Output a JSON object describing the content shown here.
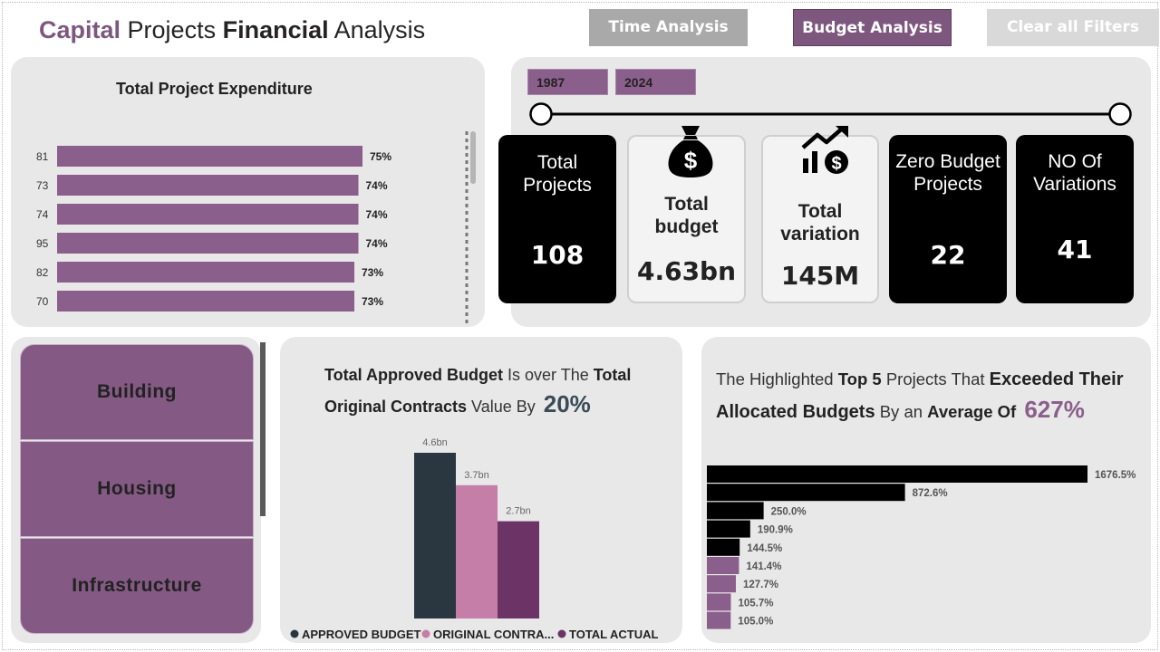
{
  "header": {
    "title_part1": "Capital",
    "title_part2": " Projects ",
    "title_part3": "Financial",
    "title_part4": " Analysis"
  },
  "nav": {
    "time_analysis": "Time Analysis",
    "budget_analysis": "Budget Analysis",
    "clear_filters": "Clear all Filters"
  },
  "colors": {
    "accent": "#7e577f",
    "dark_bar": "#2a3740",
    "pink_bar": "#c47ea7",
    "purple_bar": "#6c3466"
  },
  "expenditure": {
    "title": "Total Project Expenditure",
    "rows": [
      {
        "label": "81",
        "pct": 75,
        "value_label": "75%"
      },
      {
        "label": "73",
        "pct": 74,
        "value_label": "74%"
      },
      {
        "label": "74",
        "pct": 74,
        "value_label": "74%"
      },
      {
        "label": "95",
        "pct": 74,
        "value_label": "74%"
      },
      {
        "label": "82",
        "pct": 73,
        "value_label": "73%"
      },
      {
        "label": "70",
        "pct": 73,
        "value_label": "73%"
      }
    ]
  },
  "slicer": {
    "start_year": "1987",
    "end_year": "2024"
  },
  "kpis": {
    "total_projects": {
      "label_line1": "Total",
      "label_line2": "Projects",
      "value": "108",
      "icon": "none"
    },
    "total_budget": {
      "label_line1": "Total",
      "label_line2": "budget",
      "value": "4.63bn",
      "icon": "money-bag-icon"
    },
    "total_variation": {
      "label_line1": "Total",
      "label_line2": "variation",
      "value": "145M",
      "icon": "growth-chart-icon"
    },
    "zero_budget": {
      "label_line1": "Zero Budget",
      "label_line2": "Projects",
      "value": "22",
      "icon": "none"
    },
    "variations": {
      "label_line1": "NO Of",
      "label_line2": "Variations",
      "value": "41",
      "icon": "none"
    }
  },
  "categories": [
    "Building",
    "Housing",
    "Infrastructure"
  ],
  "budget_panel": {
    "h1_bold1": "Total Approved Budget",
    "h1_normal1": " Is over The ",
    "h1_bold2": "Total",
    "h2_bold": "Original Contracts",
    "h2_normal": " Value By",
    "h2_pct": "20%"
  },
  "top5_panel": {
    "h1_normal1": "The Highlighted ",
    "h1_bold1": "Top 5",
    "h1_normal2": " Projects That ",
    "h1_bold2": "Exceeded Their",
    "h2_bold1": "Allocated Budgets",
    "h2_normal1": " By an ",
    "h2_bold2": "Average Of",
    "h2_pct": "627%"
  },
  "chart_data": [
    {
      "type": "bar",
      "orientation": "horizontal",
      "title": "Total Project Expenditure",
      "categories": [
        "81",
        "73",
        "74",
        "95",
        "82",
        "70"
      ],
      "values": [
        75,
        74,
        74,
        74,
        73,
        73
      ],
      "unit": "%"
    },
    {
      "type": "bar",
      "title": "",
      "categories": [
        ""
      ],
      "series": [
        {
          "name": "APPROVED BUDGET",
          "values": [
            4.6
          ],
          "label": "4.6bn",
          "color": "#2a3740"
        },
        {
          "name": "ORIGINAL CONTRA...",
          "values": [
            3.7
          ],
          "label": "3.7bn",
          "color": "#c47ea7"
        },
        {
          "name": "TOTAL ACTUAL",
          "values": [
            2.7
          ],
          "label": "2.7bn",
          "color": "#6c3466"
        }
      ],
      "unit": "bn",
      "legend": "bottom"
    },
    {
      "type": "bar",
      "orientation": "horizontal",
      "title": "",
      "values": [
        1676.5,
        872.6,
        250.0,
        190.9,
        144.5,
        141.4,
        127.7,
        105.7,
        105.0
      ],
      "labels": [
        "1676.5%",
        "872.6%",
        "250.0%",
        "190.9%",
        "144.5%",
        "141.4%",
        "127.7%",
        "105.7%",
        "105.0%"
      ],
      "highlighted_top": 5,
      "colors": {
        "highlighted": "#000000",
        "other": "#8b5f8c"
      },
      "unit": "%"
    }
  ]
}
